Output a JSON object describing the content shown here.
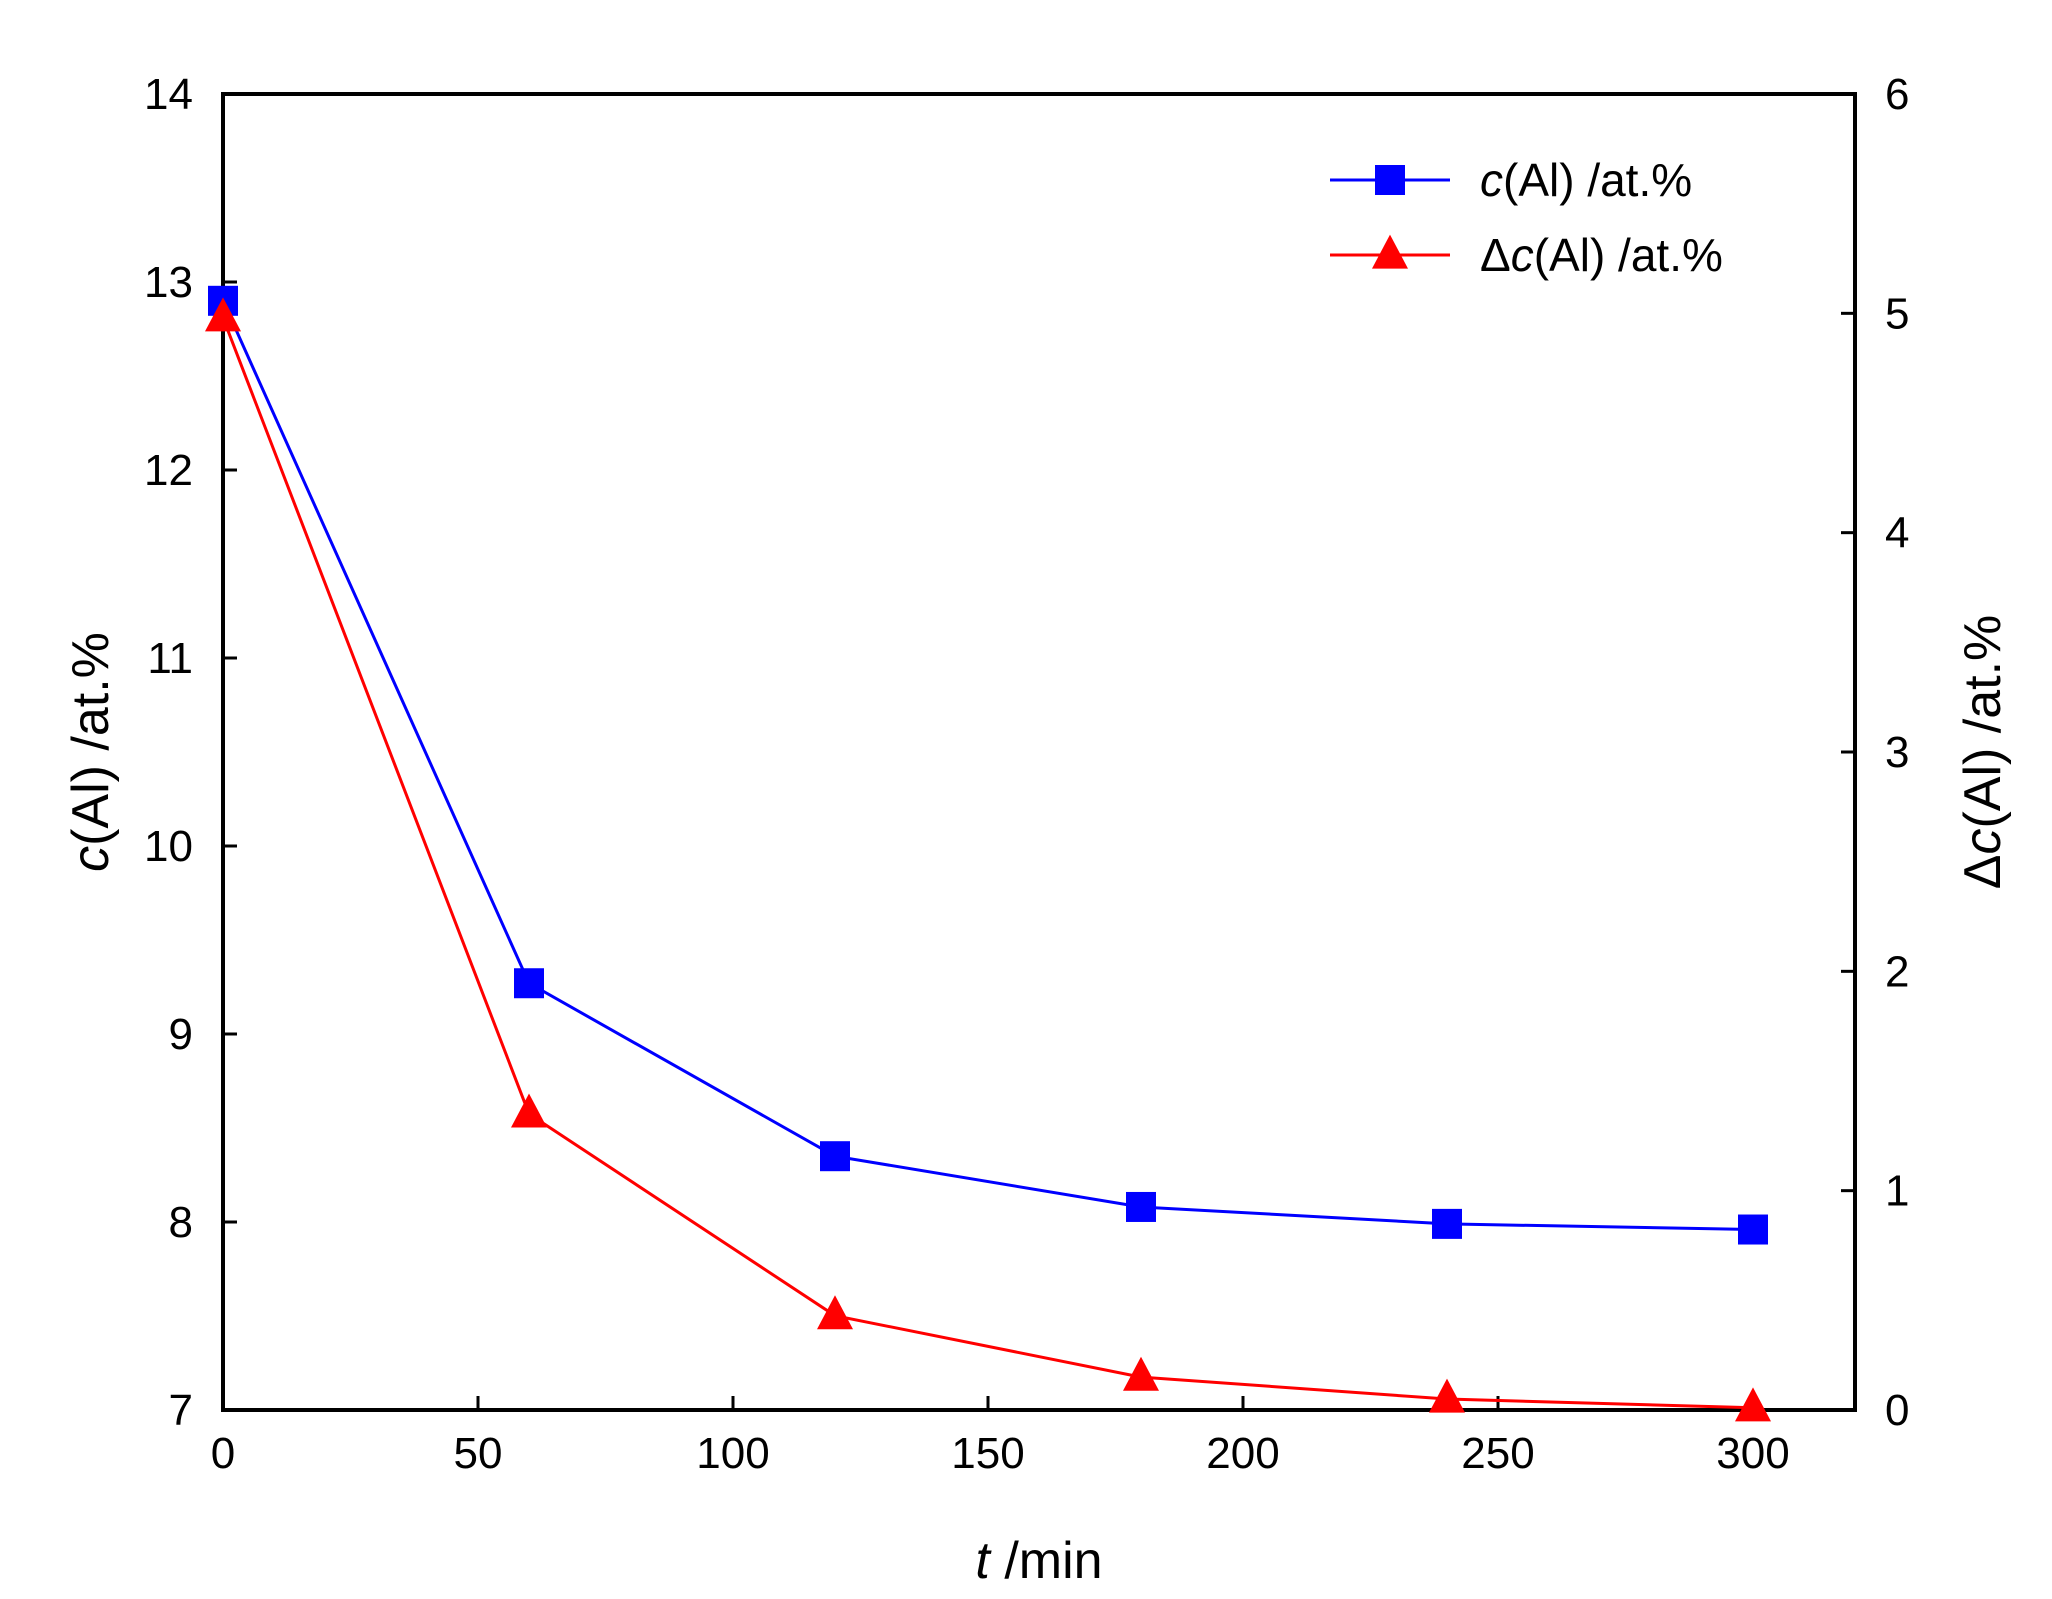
{
  "chart_data": {
    "type": "line",
    "x": [
      0,
      60,
      120,
      180,
      240,
      300
    ],
    "xlim": [
      0,
      320
    ],
    "ylim": [
      7,
      14
    ],
    "y2lim": [
      0,
      6
    ],
    "x_ticks": [
      "0",
      "50",
      "100",
      "150",
      "200",
      "250",
      "300"
    ],
    "y_ticks": [
      "7",
      "8",
      "9",
      "10",
      "11",
      "12",
      "13",
      "14"
    ],
    "y2_ticks": [
      "0",
      "1",
      "2",
      "3",
      "4",
      "5",
      "6"
    ],
    "xlabel": {
      "var": "t",
      "rest": " /min"
    },
    "ylabel": {
      "var": "c",
      "rest": "(Al) /at.%"
    },
    "y2label": {
      "prefix": "Δ",
      "var": "c",
      "rest": "(Al) /at.%"
    },
    "legend_position": "top-right",
    "grid": false,
    "series": [
      {
        "name": "c(Al) /at.%",
        "legend": {
          "prefix": "",
          "var": "c",
          "rest": "(Al) /at.%"
        },
        "axis": "left",
        "marker": "square",
        "color": "#0000ff",
        "values": [
          12.9,
          9.27,
          8.35,
          8.08,
          7.99,
          7.96
        ]
      },
      {
        "name": "Δc(Al) /at.%",
        "legend": {
          "prefix": "Δ",
          "var": "c",
          "rest": "(Al) /at.%"
        },
        "axis": "right",
        "marker": "triangle",
        "color": "#ff0000",
        "values": [
          4.98,
          1.35,
          0.43,
          0.15,
          0.05,
          0.01
        ]
      }
    ]
  }
}
